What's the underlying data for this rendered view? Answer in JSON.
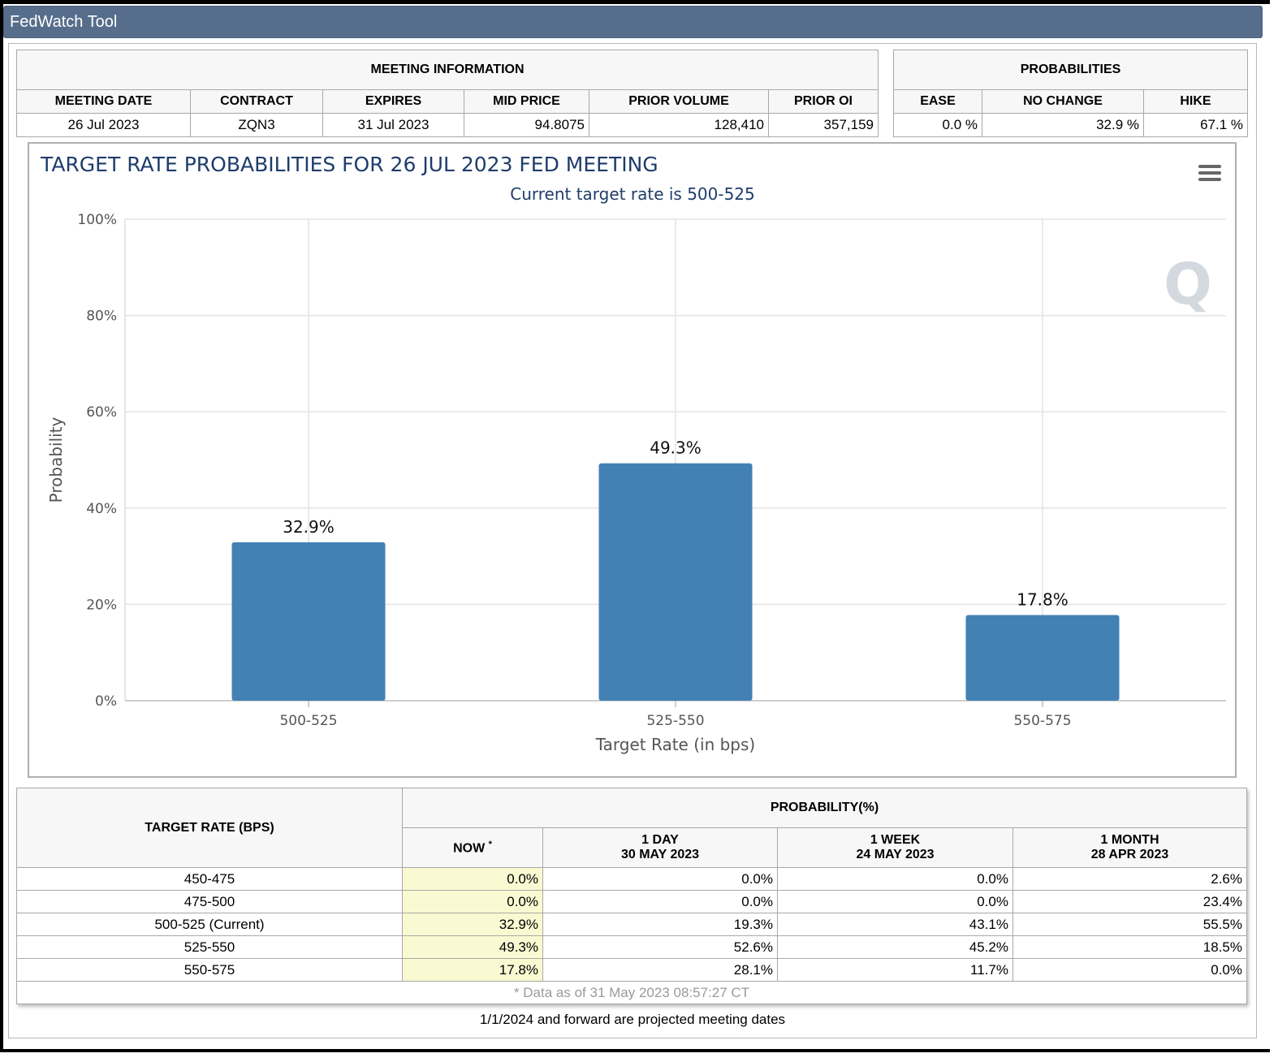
{
  "app": {
    "title": "FedWatch Tool"
  },
  "meeting_info": {
    "header": "MEETING INFORMATION",
    "columns": [
      "MEETING DATE",
      "CONTRACT",
      "EXPIRES",
      "MID PRICE",
      "PRIOR VOLUME",
      "PRIOR OI"
    ],
    "row": [
      "26 Jul 2023",
      "ZQN3",
      "31 Jul 2023",
      "94.8075",
      "128,410",
      "357,159"
    ]
  },
  "probabilities": {
    "header": "PROBABILITIES",
    "columns": [
      "EASE",
      "NO CHANGE",
      "HIKE"
    ],
    "row": [
      "0.0 %",
      "32.9 %",
      "67.1 %"
    ]
  },
  "chart_data": {
    "type": "bar",
    "title": "TARGET RATE PROBABILITIES FOR 26 JUL 2023 FED MEETING",
    "subtitle": "Current target rate is 500-525",
    "categories": [
      "500-525",
      "525-550",
      "550-575"
    ],
    "values": [
      32.9,
      49.3,
      17.8
    ],
    "data_labels": [
      "32.9%",
      "49.3%",
      "17.8%"
    ],
    "xlabel": "Target Rate (in bps)",
    "ylabel": "Probability",
    "ylim": [
      0,
      100
    ],
    "yticks": [
      0,
      20,
      40,
      60,
      80,
      100
    ],
    "ytick_labels": [
      "0%",
      "20%",
      "40%",
      "60%",
      "80%",
      "100%"
    ],
    "grid": true,
    "bar_color": "#4380b4"
  },
  "rates_table": {
    "target_header": "TARGET RATE (BPS)",
    "prob_header": "PROBABILITY(%)",
    "now_label": "NOW",
    "now_marker": "*",
    "col_1day": {
      "label": "1 DAY",
      "date": "30 MAY 2023"
    },
    "col_1week": {
      "label": "1 WEEK",
      "date": "24 MAY 2023"
    },
    "col_1month": {
      "label": "1 MONTH",
      "date": "28 APR 2023"
    },
    "rows": [
      [
        "450-475",
        "0.0%",
        "0.0%",
        "0.0%",
        "2.6%"
      ],
      [
        "475-500",
        "0.0%",
        "0.0%",
        "0.0%",
        "23.4%"
      ],
      [
        "500-525 (Current)",
        "32.9%",
        "19.3%",
        "43.1%",
        "55.5%"
      ],
      [
        "525-550",
        "49.3%",
        "52.6%",
        "45.2%",
        "18.5%"
      ],
      [
        "550-575",
        "17.8%",
        "28.1%",
        "11.7%",
        "0.0%"
      ]
    ],
    "footnote": "* Data as of 31 May 2023 08:57:27 CT"
  },
  "bottom_note": "1/1/2024 and forward are projected meeting dates"
}
